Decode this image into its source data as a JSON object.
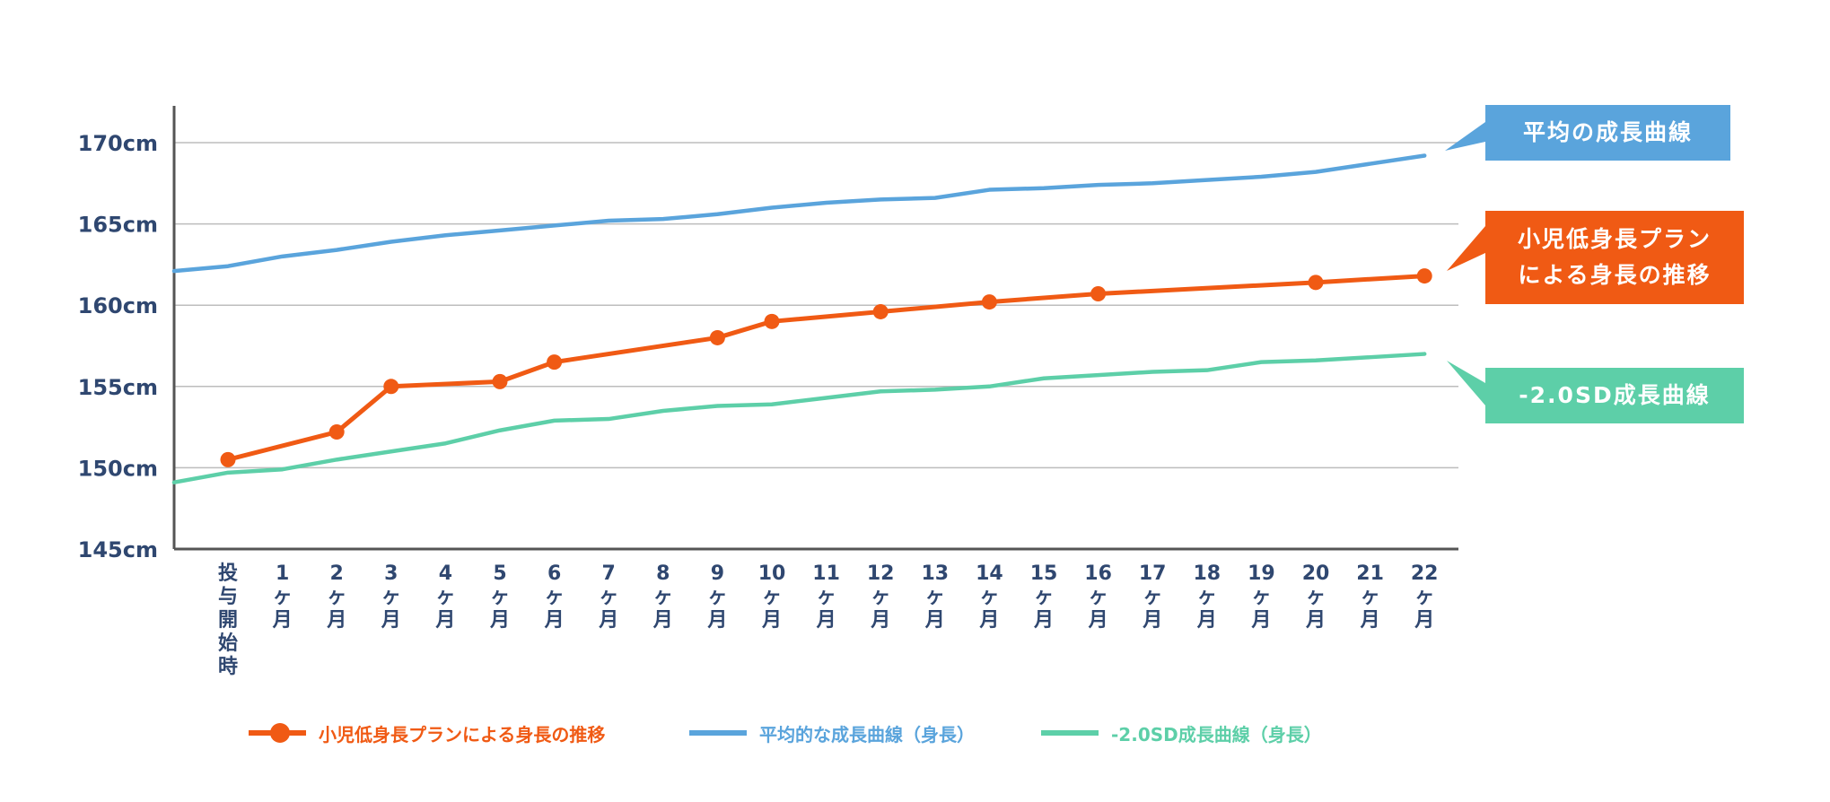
{
  "chart_data": {
    "type": "line",
    "title": "",
    "xlabel": "",
    "ylabel": "",
    "ylim": [
      145,
      170
    ],
    "y_ticks": [
      "170cm",
      "165cm",
      "160cm",
      "155cm",
      "150cm",
      "145cm"
    ],
    "y_tick_values": [
      170,
      165,
      160,
      155,
      150,
      145
    ],
    "categories": [
      [
        "投",
        "与",
        "開",
        "始",
        "時"
      ],
      [
        "1",
        "ヶ",
        "月"
      ],
      [
        "2",
        "ヶ",
        "月"
      ],
      [
        "3",
        "ヶ",
        "月"
      ],
      [
        "4",
        "ヶ",
        "月"
      ],
      [
        "5",
        "ヶ",
        "月"
      ],
      [
        "6",
        "ヶ",
        "月"
      ],
      [
        "7",
        "ヶ",
        "月"
      ],
      [
        "8",
        "ヶ",
        "月"
      ],
      [
        "9",
        "ヶ",
        "月"
      ],
      [
        "10",
        "ヶ",
        "月"
      ],
      [
        "11",
        "ヶ",
        "月"
      ],
      [
        "12",
        "ヶ",
        "月"
      ],
      [
        "13",
        "ヶ",
        "月"
      ],
      [
        "14",
        "ヶ",
        "月"
      ],
      [
        "15",
        "ヶ",
        "月"
      ],
      [
        "16",
        "ヶ",
        "月"
      ],
      [
        "17",
        "ヶ",
        "月"
      ],
      [
        "18",
        "ヶ",
        "月"
      ],
      [
        "19",
        "ヶ",
        "月"
      ],
      [
        "20",
        "ヶ",
        "月"
      ],
      [
        "21",
        "ヶ",
        "月"
      ],
      [
        "22",
        "ヶ",
        "月"
      ]
    ],
    "grid": true,
    "series": [
      {
        "name": "平均的な成長曲線（身長）",
        "color": "#5aa4dc",
        "x": [
          -1,
          0,
          1,
          2,
          3,
          4,
          5,
          6,
          7,
          8,
          9,
          10,
          11,
          12,
          13,
          14,
          15,
          16,
          17,
          18,
          19,
          20,
          21,
          22
        ],
        "values": [
          162.1,
          162.4,
          163.0,
          163.4,
          163.9,
          164.3,
          164.6,
          164.9,
          165.2,
          165.3,
          165.6,
          166.0,
          166.3,
          166.5,
          166.6,
          167.1,
          167.2,
          167.4,
          167.5,
          167.7,
          167.9,
          168.2,
          168.7,
          169.2
        ],
        "markers": false
      },
      {
        "name": "-2.0SD成長曲線（身長）",
        "color": "#5dcfa8",
        "x": [
          -1,
          0,
          1,
          2,
          3,
          4,
          5,
          6,
          7,
          8,
          9,
          10,
          11,
          12,
          13,
          14,
          15,
          16,
          17,
          18,
          19,
          20,
          21,
          22
        ],
        "values": [
          149.1,
          149.7,
          149.9,
          150.5,
          151.0,
          151.5,
          152.3,
          152.9,
          153.0,
          153.5,
          153.8,
          153.9,
          154.3,
          154.7,
          154.8,
          155.0,
          155.5,
          155.7,
          155.9,
          156.0,
          156.5,
          156.6,
          156.8,
          157.0
        ],
        "markers": false
      },
      {
        "name": "小児低身長プランによる身長の推移",
        "color": "#f05a14",
        "x": [
          0,
          2,
          3,
          5,
          6,
          9,
          10,
          12,
          14,
          16,
          20,
          22
        ],
        "values": [
          150.5,
          152.2,
          155.0,
          155.3,
          156.5,
          158.0,
          159.0,
          159.6,
          160.2,
          160.7,
          161.4,
          161.8
        ],
        "markers": true
      }
    ],
    "callouts": [
      {
        "lines": [
          "平均の成長曲線"
        ],
        "color": "#5aa4dc"
      },
      {
        "lines": [
          "小児低身長プラン",
          "による身長の推移"
        ],
        "color": "#f05a14"
      },
      {
        "lines": [
          "-2.0SD成長曲線"
        ],
        "color": "#5dcfa8"
      }
    ],
    "legend": [
      {
        "label": "小児低身長プランによる身長の推移",
        "color": "#f05a14",
        "marker": true
      },
      {
        "label": "平均的な成長曲線（身長）",
        "color": "#5aa4dc",
        "marker": false
      },
      {
        "label": "-2.0SD成長曲線（身長）",
        "color": "#5dcfa8",
        "marker": false
      }
    ],
    "legend_position": "bottom"
  }
}
